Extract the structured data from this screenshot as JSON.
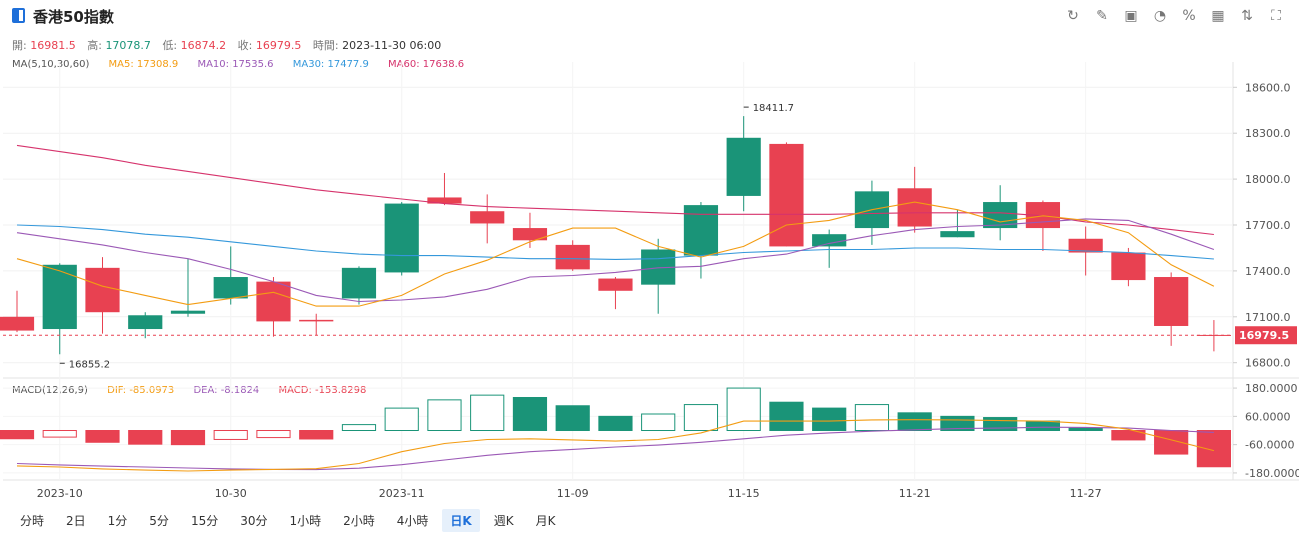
{
  "header": {
    "title": "香港50指數",
    "tools": [
      {
        "name": "refresh-icon",
        "glyph": "↻"
      },
      {
        "name": "draw-icon",
        "glyph": "✎"
      },
      {
        "name": "image-icon",
        "glyph": "▣"
      },
      {
        "name": "pie-icon",
        "glyph": "◔"
      },
      {
        "name": "percent-icon",
        "glyph": "%"
      },
      {
        "name": "grid-icon",
        "glyph": "▦"
      },
      {
        "name": "sort-icon",
        "glyph": "⇅"
      },
      {
        "name": "fullscreen-icon",
        "glyph": "⛶"
      }
    ]
  },
  "ohlc": {
    "open_label": "開:",
    "open": "16981.5",
    "high_label": "高:",
    "high": "17078.7",
    "low_label": "低:",
    "low": "16874.2",
    "close_label": "收:",
    "close": "16979.5",
    "time_label": "時間:",
    "time": "2023-11-30 06:00"
  },
  "ma_legend": {
    "label": "MA(5,10,30,60)",
    "ma5": "MA5: 17308.9",
    "ma10": "MA10: 17535.6",
    "ma30": "MA30: 17477.9",
    "ma60": "MA60: 17638.6"
  },
  "macd_legend": {
    "label": "MACD(12,26,9)",
    "dif": "DIF: -85.0973",
    "dea": "DEA: -8.1824",
    "macd": "MACD: -153.8298"
  },
  "colors": {
    "up": "#1a9478",
    "down": "#e84151",
    "ma5": "#f39c12",
    "ma10": "#9b59b6",
    "ma30": "#3498db",
    "ma60": "#d6336c",
    "dif": "#f39c12",
    "dea": "#9b59b6"
  },
  "periods": [
    "分時",
    "2日",
    "1分",
    "5分",
    "15分",
    "30分",
    "1小時",
    "2小時",
    "4小時",
    "日K",
    "週K",
    "月K"
  ],
  "active_period": "日K",
  "chart_data": {
    "type": "candlestick",
    "price_axis": {
      "ticks": [
        "18600.0",
        "18300.0",
        "18000.0",
        "17700.0",
        "17400.0",
        "17100.0",
        "16800.0"
      ],
      "range": [
        16700,
        18700
      ]
    },
    "macd_axis": {
      "ticks": [
        "180.0000",
        "60.0000",
        "-60.0000",
        "-180.0000"
      ],
      "range": [
        -210,
        210
      ]
    },
    "x_ticks": [
      {
        "label": "2023-10",
        "index": 1
      },
      {
        "label": "10-30",
        "index": 5
      },
      {
        "label": "2023-11",
        "index": 9
      },
      {
        "label": "11-09",
        "index": 13
      },
      {
        "label": "11-15",
        "index": 17
      },
      {
        "label": "11-21",
        "index": 21
      },
      {
        "label": "11-27",
        "index": 25
      }
    ],
    "current_price": "16979.5",
    "annotations": [
      {
        "index": 17,
        "value": 18411.7,
        "label": "18411.7"
      },
      {
        "index": 1,
        "value": 16855.2,
        "label": "16855.2"
      }
    ],
    "candles": [
      {
        "o": 17100,
        "h": 17270,
        "l": 17000,
        "c": 17010
      },
      {
        "o": 17020,
        "h": 17450,
        "l": 16855.2,
        "c": 17440
      },
      {
        "o": 17420,
        "h": 17490,
        "l": 16990,
        "c": 17130
      },
      {
        "o": 17020,
        "h": 17130,
        "l": 16960,
        "c": 17110
      },
      {
        "o": 17120,
        "h": 17480,
        "l": 17100,
        "c": 17140
      },
      {
        "o": 17220,
        "h": 17560,
        "l": 17180,
        "c": 17360
      },
      {
        "o": 17330,
        "h": 17360,
        "l": 16970,
        "c": 17070
      },
      {
        "o": 17080,
        "h": 17120,
        "l": 16980,
        "c": 17070
      },
      {
        "o": 17220,
        "h": 17430,
        "l": 17180,
        "c": 17420
      },
      {
        "o": 17390,
        "h": 17850,
        "l": 17370,
        "c": 17840
      },
      {
        "o": 17880,
        "h": 18040,
        "l": 17830,
        "c": 17840
      },
      {
        "o": 17790,
        "h": 17900,
        "l": 17580,
        "c": 17710
      },
      {
        "o": 17680,
        "h": 17780,
        "l": 17550,
        "c": 17600
      },
      {
        "o": 17570,
        "h": 17600,
        "l": 17400,
        "c": 17410
      },
      {
        "o": 17350,
        "h": 17360,
        "l": 17150,
        "c": 17270
      },
      {
        "o": 17310,
        "h": 17610,
        "l": 17120,
        "c": 17540
      },
      {
        "o": 17500,
        "h": 17850,
        "l": 17350,
        "c": 17830
      },
      {
        "o": 17890,
        "h": 18411.7,
        "l": 17790,
        "c": 18270
      },
      {
        "o": 18230,
        "h": 18240,
        "l": 17560,
        "c": 17560
      },
      {
        "o": 17560,
        "h": 17670,
        "l": 17420,
        "c": 17640
      },
      {
        "o": 17680,
        "h": 17990,
        "l": 17570,
        "c": 17920
      },
      {
        "o": 17940,
        "h": 18080,
        "l": 17650,
        "c": 17690
      },
      {
        "o": 17620,
        "h": 17800,
        "l": 17620,
        "c": 17660
      },
      {
        "o": 17680,
        "h": 17960,
        "l": 17600,
        "c": 17850
      },
      {
        "o": 17850,
        "h": 17860,
        "l": 17530,
        "c": 17680
      },
      {
        "o": 17610,
        "h": 17690,
        "l": 17370,
        "c": 17520
      },
      {
        "o": 17520,
        "h": 17550,
        "l": 17300,
        "c": 17340
      },
      {
        "o": 17360,
        "h": 17390,
        "l": 16910,
        "c": 17040
      },
      {
        "o": 16981.5,
        "h": 17078.7,
        "l": 16874.2,
        "c": 16979.5
      }
    ],
    "ma5": [
      17480,
      17400,
      17300,
      17240,
      17180,
      17220,
      17260,
      17170,
      17170,
      17240,
      17380,
      17470,
      17590,
      17680,
      17680,
      17560,
      17490,
      17560,
      17700,
      17730,
      17800,
      17850,
      17800,
      17720,
      17760,
      17730,
      17650,
      17440,
      17300
    ],
    "ma10": [
      17650,
      17610,
      17570,
      17520,
      17480,
      17410,
      17330,
      17240,
      17200,
      17210,
      17230,
      17280,
      17360,
      17370,
      17390,
      17420,
      17430,
      17480,
      17510,
      17580,
      17630,
      17670,
      17690,
      17700,
      17720,
      17740,
      17730,
      17640,
      17540
    ],
    "ma30": [
      17700,
      17690,
      17670,
      17640,
      17620,
      17590,
      17560,
      17530,
      17510,
      17500,
      17500,
      17490,
      17480,
      17480,
      17475,
      17480,
      17500,
      17520,
      17530,
      17540,
      17540,
      17550,
      17550,
      17540,
      17540,
      17530,
      17520,
      17500,
      17478
    ],
    "ma60": [
      18220,
      18180,
      18140,
      18090,
      18050,
      18010,
      17970,
      17930,
      17900,
      17870,
      17840,
      17820,
      17810,
      17800,
      17790,
      17780,
      17770,
      17770,
      17770,
      17770,
      17775,
      17780,
      17780,
      17780,
      17760,
      17720,
      17700,
      17670,
      17638
    ],
    "macd_hist": [
      -35,
      -28,
      -50,
      -58,
      -60,
      -38,
      -30,
      -36,
      25,
      95,
      130,
      150,
      140,
      105,
      60,
      70,
      110,
      180,
      120,
      95,
      110,
      75,
      60,
      55,
      40,
      10,
      -40,
      -100,
      -153.8
    ],
    "dif": [
      -150,
      -155,
      -163,
      -168,
      -172,
      -168,
      -165,
      -162,
      -140,
      -90,
      -55,
      -38,
      -35,
      -40,
      -45,
      -38,
      -10,
      40,
      40,
      40,
      45,
      46,
      45,
      42,
      40,
      30,
      5,
      -40,
      -85.1
    ],
    "dea": [
      -140,
      -146,
      -151,
      -155,
      -159,
      -163,
      -165,
      -166,
      -160,
      -145,
      -125,
      -105,
      -90,
      -80,
      -70,
      -62,
      -50,
      -35,
      -20,
      -10,
      -3,
      3,
      8,
      10,
      14,
      13,
      10,
      0,
      -8.2
    ]
  }
}
